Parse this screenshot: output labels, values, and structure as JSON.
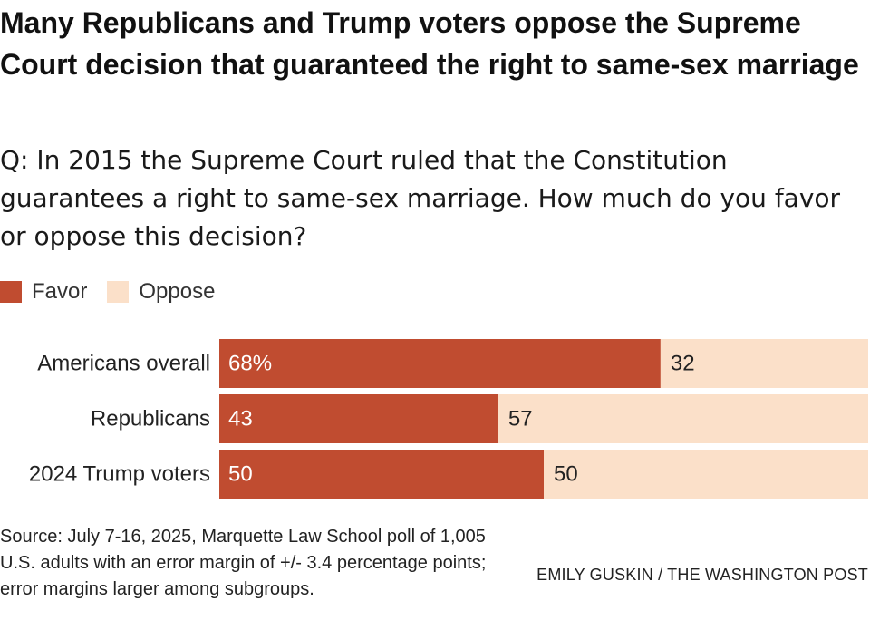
{
  "header": {
    "title": "Many Republicans and Trump voters oppose the Supreme Court decision that guaranteed the right to same-sex marriage",
    "question": "Q: In 2015 the Supreme Court ruled that the Constitution guarantees a right to same-sex marriage. How much do you favor or oppose this decision?"
  },
  "legend": {
    "favor": "Favor",
    "oppose": "Oppose"
  },
  "colors": {
    "favor": "#c04c30",
    "oppose": "#fbe0c9",
    "favor_text": "#ffffff",
    "oppose_text": "#222222"
  },
  "chart_data": {
    "type": "bar",
    "orientation": "horizontal",
    "stacked": true,
    "title": "Many Republicans and Trump voters oppose the Supreme Court decision that guaranteed the right to same-sex marriage",
    "categories": [
      "Americans overall",
      "Republicans",
      "2024 Trump voters"
    ],
    "series": [
      {
        "name": "Favor",
        "values": [
          68,
          43,
          50
        ],
        "labels": [
          "68%",
          "43",
          "50"
        ]
      },
      {
        "name": "Oppose",
        "values": [
          32,
          57,
          50
        ],
        "labels": [
          "32",
          "57",
          "50"
        ]
      }
    ],
    "xlim": [
      0,
      100
    ],
    "xlabel": "",
    "ylabel": "",
    "grid": false,
    "legend_position": "top-left"
  },
  "footer": {
    "source": "Source: July 7-16, 2025, Marquette Law School poll of 1,005 U.S. adults with an error margin of +/- 3.4 percentage points; error margins larger among subgroups.",
    "credit": "EMILY GUSKIN / THE WASHINGTON POST"
  }
}
